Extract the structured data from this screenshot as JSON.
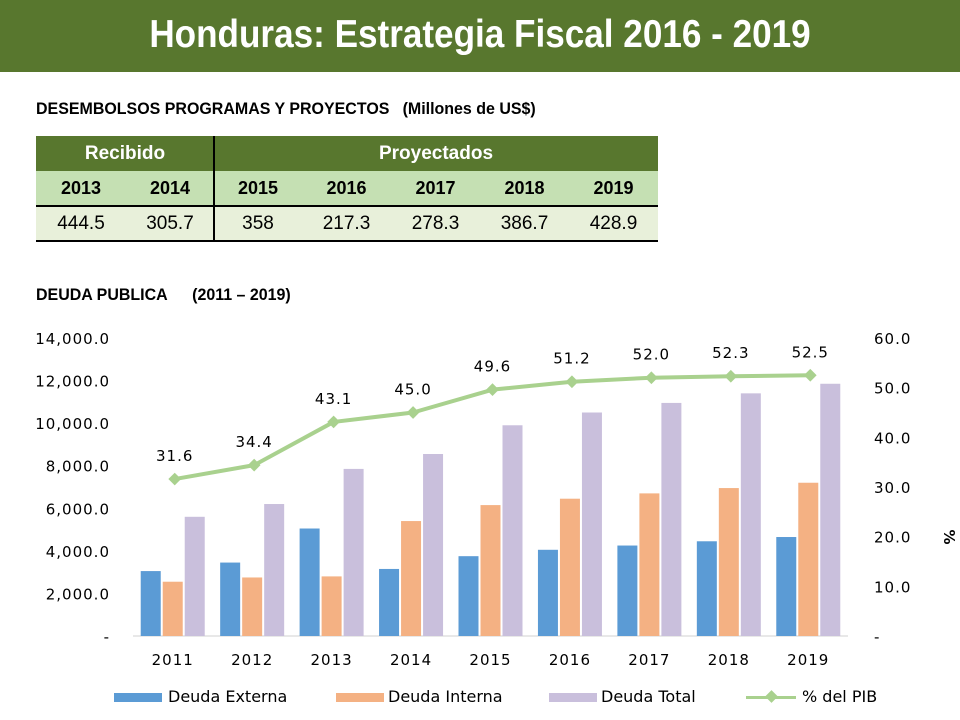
{
  "page": {
    "title": "Honduras: Estrategia Fiscal 2016 - 2019"
  },
  "disbursements": {
    "heading": "DESEMBOLSOS PROGRAMAS Y PROYECTOS",
    "unit": "(Millones de US$)",
    "received_label": "Recibido",
    "projected_label": "Proyectados",
    "years": [
      "2013",
      "2014",
      "2015",
      "2016",
      "2017",
      "2018",
      "2019"
    ],
    "values": [
      "444.5",
      "305.7",
      "358",
      "217.3",
      "278.3",
      "386.7",
      "428.9"
    ]
  },
  "debt": {
    "heading": "DEUDA PUBLICA",
    "period": "(2011 – 2019)"
  },
  "chart_data": {
    "type": "bar",
    "categories": [
      "2011",
      "2012",
      "2013",
      "2014",
      "2015",
      "2016",
      "2017",
      "2018",
      "2019"
    ],
    "series": [
      {
        "name": "Deuda Externa",
        "type": "bar",
        "axis": "left",
        "color": "#5b9bd5",
        "values": [
          3050,
          3450,
          5050,
          3150,
          3750,
          4050,
          4250,
          4450,
          4650
        ]
      },
      {
        "name": "Deuda Interna",
        "type": "bar",
        "axis": "left",
        "color": "#f4b183",
        "values": [
          2550,
          2750,
          2800,
          5400,
          6150,
          6450,
          6700,
          6950,
          7200
        ]
      },
      {
        "name": "Deuda Total",
        "type": "bar",
        "axis": "left",
        "color": "#c9bfdc",
        "values": [
          5600,
          6200,
          7850,
          8550,
          9900,
          10500,
          10950,
          11400,
          11850
        ]
      },
      {
        "name": "% del PIB",
        "type": "line",
        "axis": "right",
        "color": "#a9d18e",
        "values": [
          31.6,
          34.4,
          43.1,
          45.0,
          49.6,
          51.2,
          52.0,
          52.3,
          52.5
        ],
        "labels": [
          "31.6",
          "34.4",
          "43.1",
          "45.0",
          "49.6",
          "51.2",
          "52.0",
          "52.3",
          "52.5"
        ]
      }
    ],
    "y_left": {
      "ylim": [
        0,
        14000
      ],
      "ticks": [
        "-",
        "2,000.0",
        "4,000.0",
        "6,000.0",
        "8,000.0",
        "10,000.0",
        "12,000.0",
        "14,000.0"
      ]
    },
    "y_right": {
      "ylim": [
        0,
        60
      ],
      "label": "%",
      "ticks": [
        "-",
        "10.0",
        "20.0",
        "30.0",
        "40.0",
        "50.0",
        "60.0"
      ]
    },
    "grid": false,
    "legend_position": "bottom"
  }
}
